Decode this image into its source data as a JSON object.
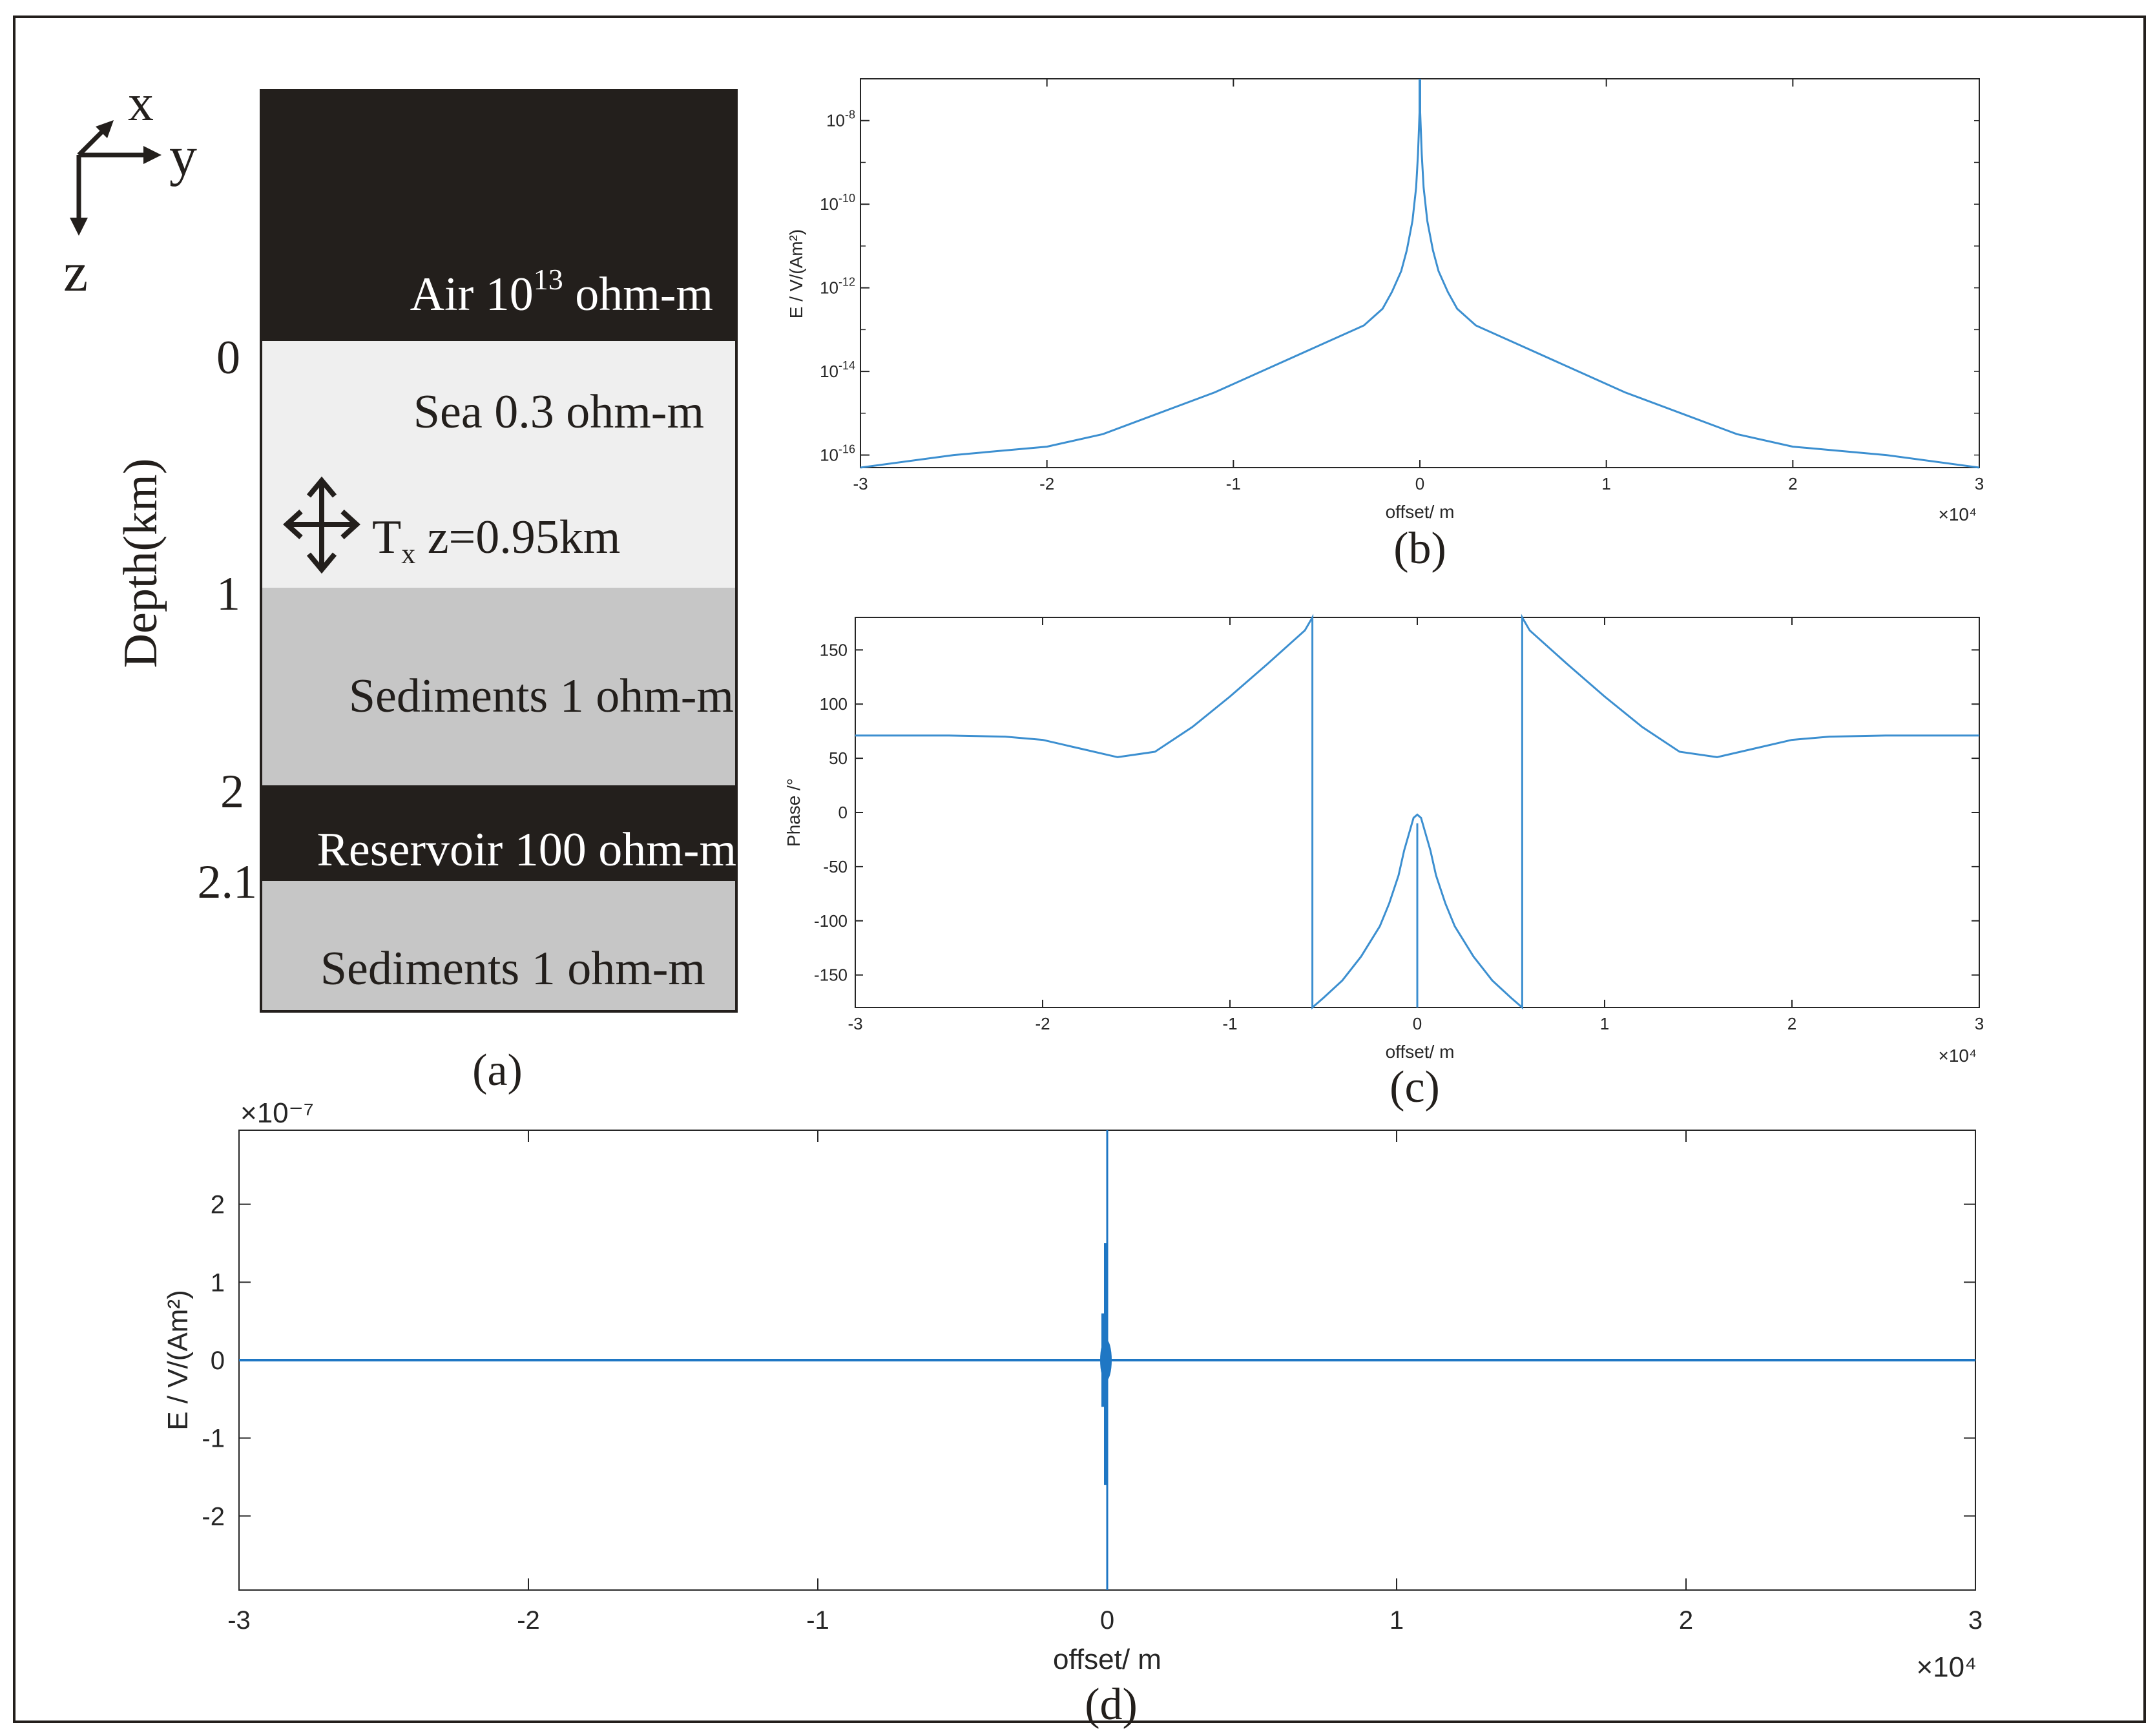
{
  "model": {
    "axes_labels": {
      "x": "x",
      "y": "y",
      "z": "z"
    },
    "depth_label": "Depth(km)",
    "depth_ticks": [
      "0",
      "1",
      "2",
      "2.1"
    ],
    "layers": [
      {
        "label": "Air 10",
        "superscript": "13",
        "suffix": " ohm-m",
        "color": "#231f1c",
        "text_color": "#ffffff"
      },
      {
        "label": "Sea 0.3 ohm-m",
        "color": "#efefef",
        "text_color": "#231f1c"
      },
      {
        "label": "Sediments 1 ohm-m",
        "color": "#c6c6c6",
        "text_color": "#231f1c"
      },
      {
        "label": "Reservoir 100 ohm-m",
        "color": "#231f1c",
        "text_color": "#ffffff"
      },
      {
        "label": "Sediments 1 ohm-m",
        "color": "#c6c6c6",
        "text_color": "#231f1c"
      }
    ],
    "transmitter": {
      "label": "T",
      "subscript": "x",
      "suffix": " z=0.95km"
    },
    "panel_label": "(a)"
  },
  "chart_data": [
    {
      "type": "line",
      "panel_label": "(b)",
      "xlabel": "offset/ m",
      "ylabel": "E / V/(Am²)",
      "x_multiplier": "×10⁴",
      "xlim": [
        -3,
        3
      ],
      "ylim_log10": [
        -16.3,
        -7.0
      ],
      "yscale": "log",
      "xticks": [
        "-3",
        "-2",
        "-1",
        "0",
        "1",
        "2",
        "3"
      ],
      "yticks": [
        {
          "base": "10",
          "exp": "-16",
          "value": -16
        },
        {
          "base": "10",
          "exp": "-14",
          "value": -14
        },
        {
          "base": "10",
          "exp": "-12",
          "value": -12
        },
        {
          "base": "10",
          "exp": "-10",
          "value": -10
        },
        {
          "base": "10",
          "exp": "-8",
          "value": -8
        }
      ],
      "color": "#3c8fd0",
      "series": [
        {
          "x": [
            -3,
            -2.5,
            -2,
            -1.7,
            -1.4,
            -1.1,
            -0.8,
            -0.5,
            -0.3,
            -0.2,
            -0.15,
            -0.1,
            -0.07,
            -0.04,
            -0.02,
            -0.01,
            0,
            0.01,
            0.02,
            0.04,
            0.07,
            0.1,
            0.15,
            0.2,
            0.3,
            0.5,
            0.8,
            1.1,
            1.4,
            1.7,
            2,
            2.5,
            3
          ],
          "y_log10": [
            -16.3,
            -16.0,
            -15.8,
            -15.5,
            -15.0,
            -14.5,
            -13.9,
            -13.3,
            -12.9,
            -12.5,
            -12.1,
            -11.6,
            -11.1,
            -10.4,
            -9.6,
            -8.8,
            -7.6,
            -8.8,
            -9.6,
            -10.4,
            -11.1,
            -11.6,
            -12.1,
            -12.5,
            -12.9,
            -13.3,
            -13.9,
            -14.5,
            -15.0,
            -15.5,
            -15.8,
            -16.0,
            -16.3
          ]
        }
      ]
    },
    {
      "type": "line",
      "panel_label": "(c)",
      "xlabel": "offset/ m",
      "ylabel": "Phase /°",
      "x_multiplier": "×10⁴",
      "xlim": [
        -3,
        3
      ],
      "ylim": [
        -180,
        180
      ],
      "xticks": [
        "-3",
        "-2",
        "-1",
        "0",
        "1",
        "2",
        "3"
      ],
      "yticks": [
        "150",
        "100",
        "50",
        "0",
        "-50",
        "-100",
        "-150"
      ],
      "color": "#3c8fd0",
      "series": [
        {
          "x": [
            -3,
            -2.5,
            -2.2,
            -2.0,
            -1.8,
            -1.6,
            -1.4,
            -1.2,
            -1.0,
            -0.8,
            -0.6,
            -0.56,
            -0.56,
            -0.5,
            -0.4,
            -0.3,
            -0.2,
            -0.15,
            -0.1,
            -0.07,
            -0.04,
            -0.02,
            0,
            0.02,
            0.04,
            0.07,
            0.1,
            0.15,
            0.2,
            0.3,
            0.4,
            0.5,
            0.56,
            0.56,
            0.6,
            0.8,
            1.0,
            1.2,
            1.4,
            1.6,
            1.8,
            2.0,
            2.2,
            2.5,
            3
          ],
          "y": [
            71,
            71,
            70,
            67,
            59,
            51,
            56,
            79,
            107,
            137,
            168,
            180,
            -180,
            -171,
            -155,
            -133,
            -105,
            -84,
            -58,
            -35,
            -17,
            -5,
            -2,
            -5,
            -17,
            -35,
            -58,
            -84,
            -105,
            -133,
            -155,
            -171,
            -180,
            180,
            168,
            137,
            107,
            79,
            56,
            51,
            59,
            67,
            70,
            71,
            71
          ]
        }
      ]
    },
    {
      "type": "line",
      "panel_label": "(d)",
      "xlabel": "offset/ m",
      "ylabel": "E / V/(Am²)",
      "x_multiplier": "×10⁴",
      "y_multiplier": "×10⁻⁷",
      "xlim": [
        -3,
        3
      ],
      "ylim": [
        -2.95,
        2.95
      ],
      "xticks": [
        "-3",
        "-2",
        "-1",
        "0",
        "1",
        "2",
        "3"
      ],
      "yticks": [
        "2",
        "1",
        "0",
        "-1",
        "-2"
      ],
      "color": "#1f77c4",
      "series": [
        {
          "x": [
            -3,
            -0.02,
            0.02,
            3
          ],
          "y": [
            0,
            0,
            0,
            0
          ]
        }
      ]
    }
  ]
}
